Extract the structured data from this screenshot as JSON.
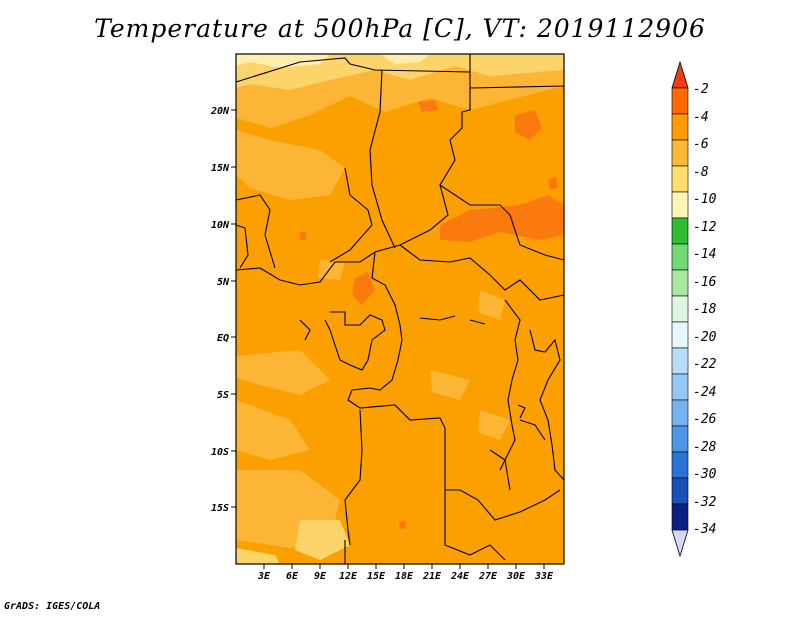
{
  "title": "Temperature at 500hPa [C], VT: 2019112906",
  "footer": "GrADS: IGES/COLA",
  "map": {
    "lat_ticks": [
      "20N",
      "15N",
      "10N",
      "5N",
      "EQ",
      "5S",
      "10S",
      "15S"
    ],
    "lon_ticks": [
      "3E",
      "6E",
      "9E",
      "12E",
      "15E",
      "18E",
      "21E",
      "24E",
      "27E",
      "30E",
      "33E"
    ]
  },
  "colorbar": {
    "labels": [
      "-2",
      "-4",
      "-6",
      "-8",
      "-10",
      "-12",
      "-14",
      "-16",
      "-18",
      "-20",
      "-22",
      "-24",
      "-26",
      "-28",
      "-30",
      "-32",
      "-34"
    ],
    "colors": [
      "#ff6a00",
      "#ff9d00",
      "#fbb937",
      "#ffdf6e",
      "#fff6b4",
      "#30be30",
      "#74d874",
      "#a8e8a0",
      "#dff5e2",
      "#e8f6ff",
      "#b8dcf8",
      "#96c8f5",
      "#78b3f0",
      "#4d96e8",
      "#2a72d6",
      "#1650b8",
      "#0c1f82"
    ],
    "top_arrow_color": "#f03c14",
    "bottom_arrow_color": "#d6d6f5"
  }
}
